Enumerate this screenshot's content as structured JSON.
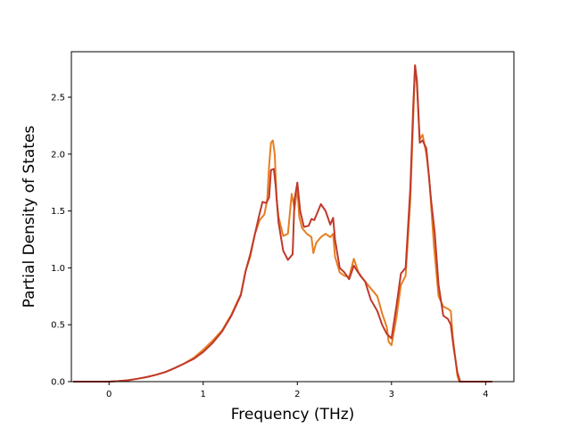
{
  "chart_data": {
    "type": "line",
    "title": "",
    "xlabel": "Frequency (THz)",
    "ylabel": "Partial Density of States",
    "xlim": [
      -0.4,
      4.3
    ],
    "ylim": [
      0.0,
      2.9
    ],
    "xticks": [
      0,
      1,
      2,
      3,
      4
    ],
    "yticks": [
      0.0,
      0.5,
      1.0,
      1.5,
      2.0,
      2.5
    ],
    "xtick_labels": [
      "0",
      "1",
      "2",
      "3",
      "4"
    ],
    "ytick_labels": [
      "0.0",
      "0.5",
      "1.0",
      "1.5",
      "2.0",
      "2.5"
    ],
    "grid": false,
    "legend": "none",
    "series": [
      {
        "color": "#e67e22",
        "points": [
          [
            -0.38,
            0
          ],
          [
            0,
            0
          ],
          [
            0.1,
            0.005
          ],
          [
            0.2,
            0.012
          ],
          [
            0.3,
            0.025
          ],
          [
            0.4,
            0.04
          ],
          [
            0.5,
            0.06
          ],
          [
            0.6,
            0.085
          ],
          [
            0.7,
            0.12
          ],
          [
            0.8,
            0.16
          ],
          [
            0.9,
            0.21
          ],
          [
            1.0,
            0.28
          ],
          [
            1.1,
            0.36
          ],
          [
            1.2,
            0.45
          ],
          [
            1.3,
            0.59
          ],
          [
            1.4,
            0.77
          ],
          [
            1.45,
            0.97
          ],
          [
            1.5,
            1.1
          ],
          [
            1.55,
            1.3
          ],
          [
            1.6,
            1.42
          ],
          [
            1.65,
            1.47
          ],
          [
            1.68,
            1.6
          ],
          [
            1.7,
            1.9
          ],
          [
            1.72,
            2.1
          ],
          [
            1.74,
            2.12
          ],
          [
            1.76,
            2.0
          ],
          [
            1.78,
            1.6
          ],
          [
            1.8,
            1.45
          ],
          [
            1.85,
            1.28
          ],
          [
            1.9,
            1.3
          ],
          [
            1.94,
            1.65
          ],
          [
            1.97,
            1.52
          ],
          [
            2.0,
            1.7
          ],
          [
            2.02,
            1.45
          ],
          [
            2.05,
            1.35
          ],
          [
            2.1,
            1.3
          ],
          [
            2.15,
            1.27
          ],
          [
            2.17,
            1.13
          ],
          [
            2.2,
            1.22
          ],
          [
            2.25,
            1.27
          ],
          [
            2.3,
            1.3
          ],
          [
            2.35,
            1.27
          ],
          [
            2.38,
            1.3
          ],
          [
            2.4,
            1.1
          ],
          [
            2.45,
            0.96
          ],
          [
            2.5,
            0.93
          ],
          [
            2.55,
            0.92
          ],
          [
            2.6,
            1.08
          ],
          [
            2.65,
            0.96
          ],
          [
            2.7,
            0.9
          ],
          [
            2.75,
            0.85
          ],
          [
            2.8,
            0.8
          ],
          [
            2.85,
            0.75
          ],
          [
            2.9,
            0.6
          ],
          [
            2.95,
            0.48
          ],
          [
            2.97,
            0.35
          ],
          [
            3.0,
            0.32
          ],
          [
            3.05,
            0.55
          ],
          [
            3.1,
            0.85
          ],
          [
            3.15,
            0.93
          ],
          [
            3.2,
            1.6
          ],
          [
            3.23,
            2.3
          ],
          [
            3.25,
            2.78
          ],
          [
            3.27,
            2.6
          ],
          [
            3.3,
            2.13
          ],
          [
            3.33,
            2.17
          ],
          [
            3.37,
            2.0
          ],
          [
            3.4,
            1.8
          ],
          [
            3.45,
            1.2
          ],
          [
            3.5,
            0.75
          ],
          [
            3.55,
            0.66
          ],
          [
            3.6,
            0.64
          ],
          [
            3.63,
            0.62
          ],
          [
            3.65,
            0.4
          ],
          [
            3.7,
            0.05
          ],
          [
            3.72,
            0
          ],
          [
            4.07,
            0
          ]
        ]
      },
      {
        "color": "#c0392b",
        "points": [
          [
            -0.38,
            0
          ],
          [
            0,
            0
          ],
          [
            0.1,
            0.005
          ],
          [
            0.2,
            0.012
          ],
          [
            0.3,
            0.025
          ],
          [
            0.4,
            0.04
          ],
          [
            0.5,
            0.06
          ],
          [
            0.6,
            0.085
          ],
          [
            0.7,
            0.12
          ],
          [
            0.8,
            0.16
          ],
          [
            0.9,
            0.2
          ],
          [
            1.0,
            0.26
          ],
          [
            1.1,
            0.34
          ],
          [
            1.2,
            0.44
          ],
          [
            1.3,
            0.58
          ],
          [
            1.4,
            0.76
          ],
          [
            1.45,
            0.97
          ],
          [
            1.5,
            1.12
          ],
          [
            1.55,
            1.3
          ],
          [
            1.6,
            1.48
          ],
          [
            1.63,
            1.58
          ],
          [
            1.67,
            1.57
          ],
          [
            1.7,
            1.62
          ],
          [
            1.72,
            1.86
          ],
          [
            1.75,
            1.87
          ],
          [
            1.77,
            1.72
          ],
          [
            1.8,
            1.4
          ],
          [
            1.85,
            1.15
          ],
          [
            1.9,
            1.07
          ],
          [
            1.95,
            1.12
          ],
          [
            1.97,
            1.6
          ],
          [
            2.0,
            1.75
          ],
          [
            2.03,
            1.5
          ],
          [
            2.07,
            1.36
          ],
          [
            2.12,
            1.37
          ],
          [
            2.15,
            1.43
          ],
          [
            2.18,
            1.42
          ],
          [
            2.22,
            1.5
          ],
          [
            2.25,
            1.56
          ],
          [
            2.3,
            1.5
          ],
          [
            2.35,
            1.38
          ],
          [
            2.38,
            1.44
          ],
          [
            2.4,
            1.25
          ],
          [
            2.45,
            1.0
          ],
          [
            2.5,
            0.96
          ],
          [
            2.55,
            0.9
          ],
          [
            2.6,
            1.02
          ],
          [
            2.63,
            0.98
          ],
          [
            2.67,
            0.93
          ],
          [
            2.72,
            0.88
          ],
          [
            2.78,
            0.72
          ],
          [
            2.85,
            0.62
          ],
          [
            2.9,
            0.5
          ],
          [
            2.95,
            0.42
          ],
          [
            3.0,
            0.38
          ],
          [
            3.05,
            0.65
          ],
          [
            3.1,
            0.95
          ],
          [
            3.15,
            1.0
          ],
          [
            3.2,
            1.7
          ],
          [
            3.23,
            2.4
          ],
          [
            3.25,
            2.78
          ],
          [
            3.27,
            2.65
          ],
          [
            3.3,
            2.1
          ],
          [
            3.33,
            2.12
          ],
          [
            3.37,
            2.05
          ],
          [
            3.42,
            1.6
          ],
          [
            3.46,
            1.3
          ],
          [
            3.5,
            0.85
          ],
          [
            3.55,
            0.58
          ],
          [
            3.6,
            0.55
          ],
          [
            3.63,
            0.5
          ],
          [
            3.66,
            0.3
          ],
          [
            3.7,
            0.08
          ],
          [
            3.73,
            0
          ],
          [
            4.07,
            0
          ]
        ]
      }
    ]
  }
}
